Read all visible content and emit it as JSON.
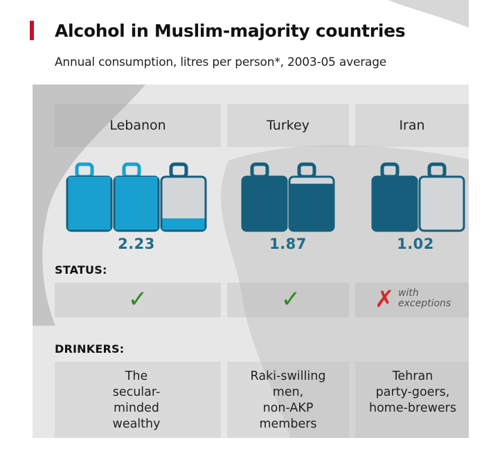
{
  "title": "Alcohol in Muslim-majority countries",
  "subtitle": "Annual consumption, litres per person*, 2003-05 average",
  "labels": {
    "status": "STATUS:",
    "drinkers": "DRINKERS:"
  },
  "colors": {
    "accent_red": "#c8102e",
    "bottle_lebanon": "#1aa0d0",
    "bottle_dark": "#155f7c",
    "bottle_empty": "#d3d6d8",
    "check_green": "#2f8a23",
    "cross_red": "#d62a2a"
  },
  "chart_data": {
    "type": "bar",
    "categories": [
      "Lebanon",
      "Turkey",
      "Iran"
    ],
    "values": [
      2.23,
      1.87,
      1.02
    ],
    "title": "Alcohol in Muslim-majority countries",
    "subtitle": "Annual consumption, litres per person*, 2003-05 average",
    "value_labels": [
      "2.23",
      "1.87",
      "1.02"
    ],
    "status": [
      "legal",
      "legal",
      "illegal with exceptions"
    ],
    "status_note": "with\nexceptions",
    "drinkers": [
      "The\nsecular-\nminded\nwealthy",
      "Raki-swilling\nmen,\nnon-AKP\nmembers",
      "Tehran\nparty-goers,\nhome-brewers"
    ]
  }
}
